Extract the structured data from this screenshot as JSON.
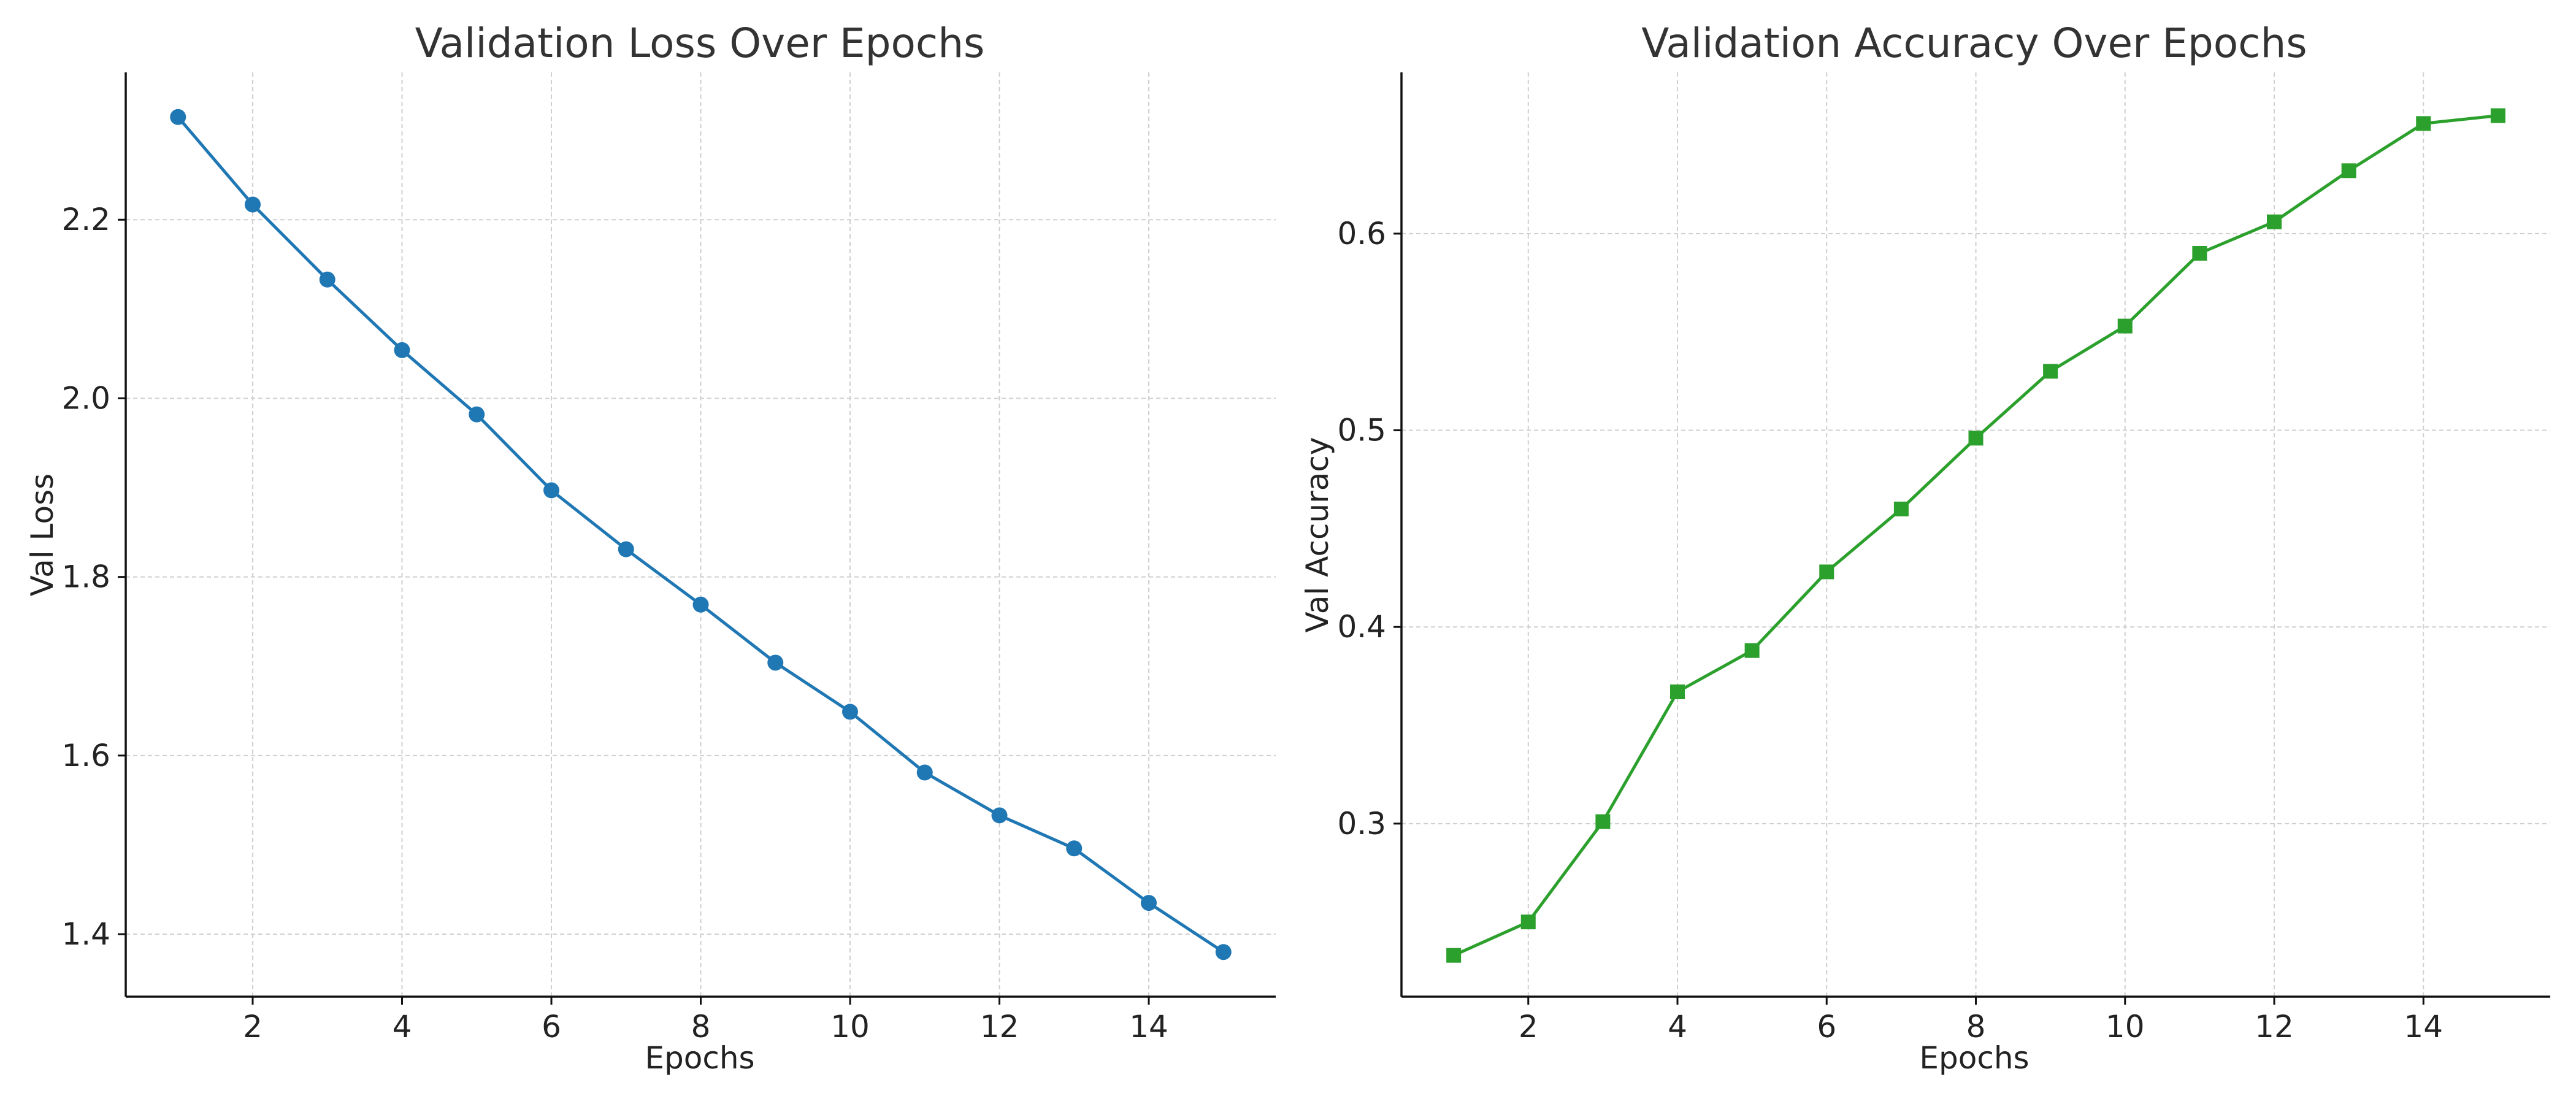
{
  "chart_data": [
    {
      "type": "line",
      "title": "Validation Loss Over Epochs",
      "xlabel": "Epochs",
      "ylabel": "Val Loss",
      "x": [
        1,
        2,
        3,
        4,
        5,
        6,
        7,
        8,
        9,
        10,
        11,
        12,
        13,
        14,
        15
      ],
      "series": [
        {
          "values": [
            2.315,
            2.217,
            2.133,
            2.054,
            1.982,
            1.897,
            1.831,
            1.769,
            1.704,
            1.649,
            1.581,
            1.533,
            1.496,
            1.435,
            1.38
          ],
          "color": "#1f77b4",
          "marker": "circle"
        }
      ],
      "xlim": [
        0.3,
        15.7
      ],
      "ylim": [
        1.33,
        2.365
      ],
      "xticks": [
        2,
        4,
        6,
        8,
        10,
        12,
        14
      ],
      "yticks": [
        1.4,
        1.6,
        1.8,
        2.0,
        2.2
      ],
      "ytick_labels": [
        "1.4",
        "1.6",
        "1.8",
        "2.0",
        "2.2"
      ],
      "grid": true,
      "legend": "none"
    },
    {
      "type": "line",
      "title": "Validation Accuracy Over Epochs",
      "xlabel": "Epochs",
      "ylabel": "Val Accuracy",
      "x": [
        1,
        2,
        3,
        4,
        5,
        6,
        7,
        8,
        9,
        10,
        11,
        12,
        13,
        14,
        15
      ],
      "series": [
        {
          "values": [
            0.233,
            0.25,
            0.301,
            0.367,
            0.388,
            0.428,
            0.46,
            0.496,
            0.53,
            0.553,
            0.59,
            0.606,
            0.632,
            0.656,
            0.66
          ],
          "color": "#2ca02c",
          "marker": "square"
        }
      ],
      "xlim": [
        0.3,
        15.7
      ],
      "ylim": [
        0.212,
        0.682
      ],
      "xticks": [
        2,
        4,
        6,
        8,
        10,
        12,
        14
      ],
      "yticks": [
        0.3,
        0.4,
        0.5,
        0.6
      ],
      "ytick_labels": [
        "0.3",
        "0.4",
        "0.5",
        "0.6"
      ],
      "grid": true,
      "legend": "none"
    }
  ]
}
